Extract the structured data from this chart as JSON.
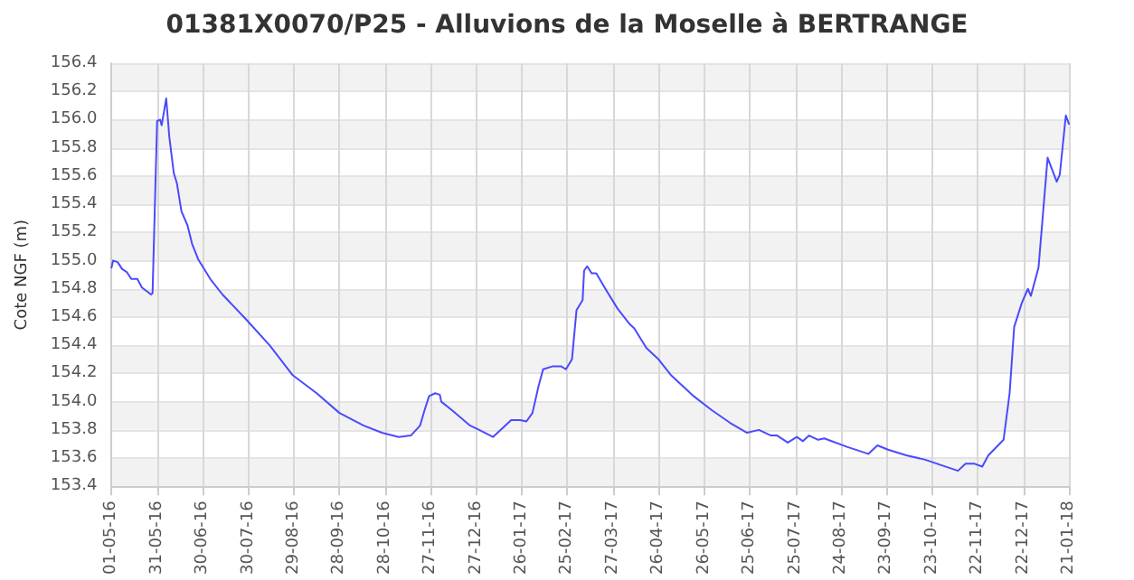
{
  "chart_data": {
    "type": "line",
    "title": "01381X0070/P25 - Alluvions de la Moselle à BERTRANGE",
    "ylabel": "Cote NGF (m)",
    "x": [
      "2016-05-01",
      "2016-05-02",
      "2016-05-05",
      "2016-05-08",
      "2016-05-11",
      "2016-05-14",
      "2016-05-18",
      "2016-05-21",
      "2016-05-27",
      "2016-05-28",
      "2016-05-31",
      "2016-06-02",
      "2016-06-03",
      "2016-06-06",
      "2016-06-08",
      "2016-06-11",
      "2016-06-13",
      "2016-06-16",
      "2016-06-20",
      "2016-06-23",
      "2016-06-27",
      "2016-07-05",
      "2016-07-13",
      "2016-07-28",
      "2016-08-13",
      "2016-08-28",
      "2016-09-13",
      "2016-09-28",
      "2016-10-14",
      "2016-10-26",
      "2016-11-06",
      "2016-11-14",
      "2016-11-20",
      "2016-11-23",
      "2016-11-26",
      "2016-11-30",
      "2016-12-03",
      "2016-12-04",
      "2016-12-11",
      "2016-12-23",
      "2016-12-29",
      "2017-01-07",
      "2017-01-11",
      "2017-01-19",
      "2017-01-25",
      "2017-01-29",
      "2017-02-02",
      "2017-02-06",
      "2017-02-09",
      "2017-02-15",
      "2017-02-21",
      "2017-02-24",
      "2017-02-28",
      "2017-03-03",
      "2017-03-07",
      "2017-03-08",
      "2017-03-10",
      "2017-03-13",
      "2017-03-16",
      "2017-03-22",
      "2017-03-30",
      "2017-04-07",
      "2017-04-10",
      "2017-04-18",
      "2017-04-26",
      "2017-05-04",
      "2017-05-12",
      "2017-05-19",
      "2017-05-31",
      "2017-06-12",
      "2017-06-23",
      "2017-07-01",
      "2017-07-09",
      "2017-07-13",
      "2017-07-20",
      "2017-07-26",
      "2017-07-30",
      "2017-08-03",
      "2017-08-09",
      "2017-08-13",
      "2017-08-28",
      "2017-09-11",
      "2017-09-17",
      "2017-09-24",
      "2017-10-06",
      "2017-10-18",
      "2017-10-29",
      "2017-11-09",
      "2017-11-14",
      "2017-11-20",
      "2017-11-25",
      "2017-11-29",
      "2017-12-09",
      "2017-12-13",
      "2017-12-16",
      "2017-12-21",
      "2017-12-25",
      "2017-12-27",
      "2018-01-01",
      "2018-01-07",
      "2018-01-13",
      "2018-01-15",
      "2018-01-19",
      "2018-01-21"
    ],
    "series": [
      {
        "color": "#4a4aff",
        "values": [
          154.95,
          155.0,
          154.99,
          154.94,
          154.92,
          154.87,
          154.87,
          154.81,
          154.76,
          154.77,
          155.99,
          156.0,
          155.96,
          156.15,
          155.88,
          155.62,
          155.55,
          155.35,
          155.25,
          155.12,
          155.01,
          154.87,
          154.76,
          154.59,
          154.4,
          154.19,
          154.06,
          153.92,
          153.83,
          153.78,
          153.75,
          153.76,
          153.83,
          153.94,
          154.04,
          154.06,
          154.05,
          154.0,
          153.94,
          153.83,
          153.8,
          153.75,
          153.79,
          153.87,
          153.87,
          153.86,
          153.92,
          154.11,
          154.23,
          154.25,
          154.25,
          154.23,
          154.3,
          154.65,
          154.72,
          154.93,
          154.96,
          154.91,
          154.91,
          154.8,
          154.66,
          154.55,
          154.52,
          154.38,
          154.3,
          154.19,
          154.11,
          154.04,
          153.94,
          153.85,
          153.78,
          153.8,
          153.76,
          153.76,
          153.71,
          153.75,
          153.72,
          153.76,
          153.73,
          153.74,
          153.68,
          153.63,
          153.69,
          153.66,
          153.62,
          153.59,
          153.55,
          153.51,
          153.56,
          153.56,
          153.54,
          153.62,
          153.73,
          154.06,
          154.53,
          154.7,
          154.8,
          154.75,
          154.95,
          155.73,
          155.56,
          155.61,
          156.03,
          155.97
        ]
      }
    ],
    "xlim": [
      "2016-05-01",
      "2018-01-21"
    ],
    "xticks": [
      {
        "value": "2016-05-01",
        "label": "01-05-16"
      },
      {
        "value": "2016-05-31",
        "label": "31-05-16"
      },
      {
        "value": "2016-06-30",
        "label": "30-06-16"
      },
      {
        "value": "2016-07-30",
        "label": "30-07-16"
      },
      {
        "value": "2016-08-29",
        "label": "29-08-16"
      },
      {
        "value": "2016-09-28",
        "label": "28-09-16"
      },
      {
        "value": "2016-10-28",
        "label": "28-10-16"
      },
      {
        "value": "2016-11-27",
        "label": "27-11-16"
      },
      {
        "value": "2016-12-27",
        "label": "27-12-16"
      },
      {
        "value": "2017-01-26",
        "label": "26-01-17"
      },
      {
        "value": "2017-02-25",
        "label": "25-02-17"
      },
      {
        "value": "2017-03-27",
        "label": "27-03-17"
      },
      {
        "value": "2017-04-26",
        "label": "26-04-17"
      },
      {
        "value": "2017-05-26",
        "label": "26-05-17"
      },
      {
        "value": "2017-06-25",
        "label": "25-06-17"
      },
      {
        "value": "2017-07-25",
        "label": "25-07-17"
      },
      {
        "value": "2017-08-24",
        "label": "24-08-17"
      },
      {
        "value": "2017-09-23",
        "label": "23-09-17"
      },
      {
        "value": "2017-10-23",
        "label": "23-10-17"
      },
      {
        "value": "2017-11-22",
        "label": "22-11-17"
      },
      {
        "value": "2017-12-22",
        "label": "22-12-17"
      },
      {
        "value": "2018-01-21",
        "label": "21-01-18"
      }
    ],
    "ylim": [
      153.4,
      156.4
    ],
    "yticks": [
      {
        "value": 153.4,
        "label": "153.4"
      },
      {
        "value": 153.6,
        "label": "153.6"
      },
      {
        "value": 153.8,
        "label": "153.8"
      },
      {
        "value": 154.0,
        "label": "154.0"
      },
      {
        "value": 154.2,
        "label": "154.2"
      },
      {
        "value": 154.4,
        "label": "154.4"
      },
      {
        "value": 154.6,
        "label": "154.6"
      },
      {
        "value": 154.8,
        "label": "154.8"
      },
      {
        "value": 155.0,
        "label": "155.0"
      },
      {
        "value": 155.2,
        "label": "155.2"
      },
      {
        "value": 155.4,
        "label": "155.4"
      },
      {
        "value": 155.6,
        "label": "155.6"
      },
      {
        "value": 155.8,
        "label": "155.8"
      },
      {
        "value": 156.0,
        "label": "156.0"
      },
      {
        "value": 156.2,
        "label": "156.2"
      },
      {
        "value": 156.4,
        "label": "156.4"
      }
    ],
    "grid": true,
    "marker": "none",
    "line_style": "solid"
  }
}
